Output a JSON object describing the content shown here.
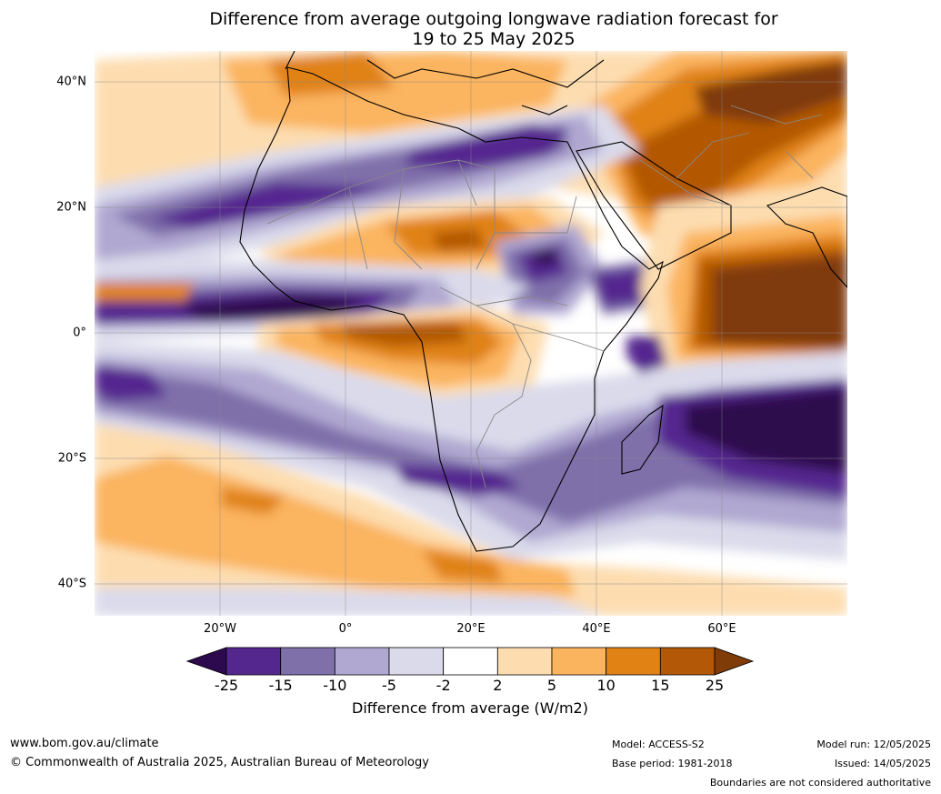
{
  "title_line1": "Difference from average outgoing longwave radiation forecast for",
  "title_line2": "19 to 25 May 2025",
  "map": {
    "lat_ticks": [
      "40°N",
      "20°N",
      "0°",
      "20°S",
      "40°S"
    ],
    "lon_ticks": [
      "20°W",
      "0°",
      "20°E",
      "40°E",
      "60°E"
    ],
    "lon_range": [
      -40,
      80
    ],
    "lat_range": [
      -45,
      45
    ]
  },
  "colorbar": {
    "label": "Difference from average (W/m2)",
    "tick_labels": [
      "-25",
      "-15",
      "-10",
      "-5",
      "-2",
      "2",
      "5",
      "10",
      "15",
      "25"
    ],
    "colors": [
      "#2d0a4e",
      "#54278f",
      "#7f70aa",
      "#b0a8d1",
      "#dadaeb",
      "#ffffff",
      "#fdddb0",
      "#fbb45e",
      "#e08214",
      "#b35806",
      "#7f3b08"
    ]
  },
  "footer": {
    "site": "www.bom.gov.au/climate",
    "copyright": "© Commonwealth of Australia 2025, Australian Bureau of Meteorology",
    "model": "Model: ACCESS-S2",
    "base_period": "Base period: 1981-2018",
    "model_run": "Model run: 12/05/2025",
    "issued": "Issued: 14/05/2025",
    "boundaries": "Boundaries are not considered authoritative"
  }
}
